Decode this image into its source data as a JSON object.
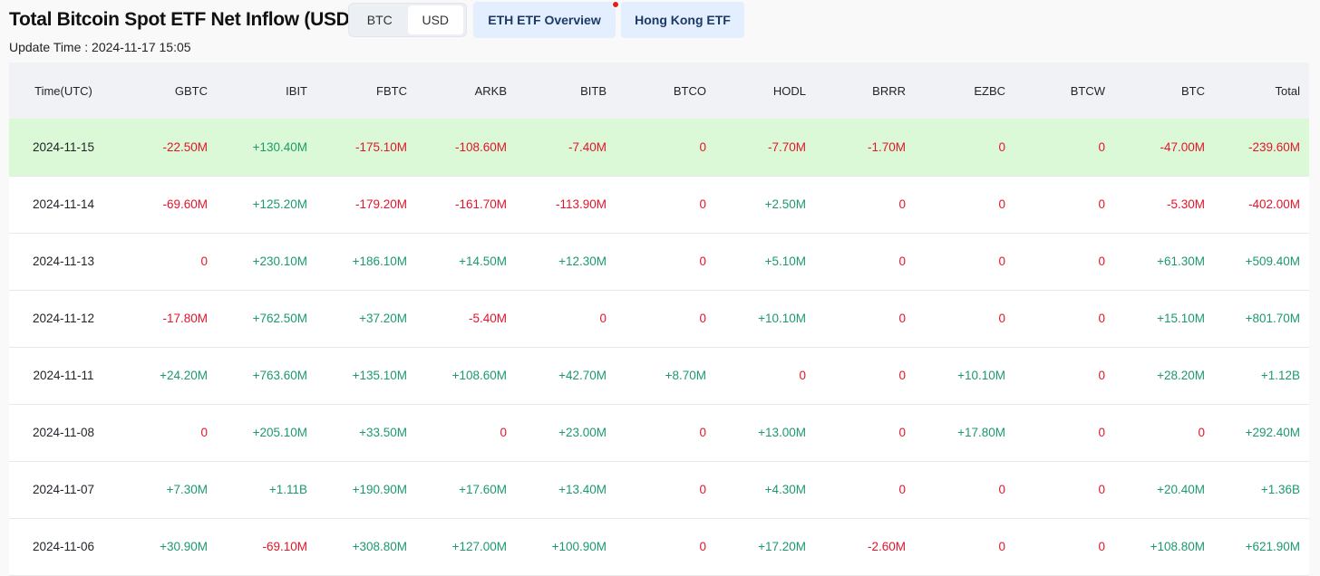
{
  "title": "Total Bitcoin Spot ETF Net Inflow (USD)",
  "update_time": "Update Time : 2024-11-17 15:05",
  "unit_toggle": {
    "options": [
      "BTC",
      "USD"
    ],
    "active": "USD"
  },
  "tabs": [
    {
      "label": "ETH ETF Overview",
      "has_notification": true
    },
    {
      "label": "Hong Kong ETF"
    }
  ],
  "colors": {
    "positive": "#1c9a6c",
    "negative": "#e3152b",
    "highlight_row": "#dcf9d7",
    "tab_bg": "#e3efff"
  },
  "table": {
    "columns": [
      "Time(UTC)",
      "GBTC",
      "IBIT",
      "FBTC",
      "ARKB",
      "BITB",
      "BTCO",
      "HODL",
      "BRRR",
      "EZBC",
      "BTCW",
      "BTC",
      "Total"
    ],
    "highlighted_row": 0,
    "rows": [
      [
        "2024-11-15",
        "-22.50M",
        "+130.40M",
        "-175.10M",
        "-108.60M",
        "-7.40M",
        "0",
        "-7.70M",
        "-1.70M",
        "0",
        "0",
        "-47.00M",
        "-239.60M"
      ],
      [
        "2024-11-14",
        "-69.60M",
        "+125.20M",
        "-179.20M",
        "-161.70M",
        "-113.90M",
        "0",
        "+2.50M",
        "0",
        "0",
        "0",
        "-5.30M",
        "-402.00M"
      ],
      [
        "2024-11-13",
        "0",
        "+230.10M",
        "+186.10M",
        "+14.50M",
        "+12.30M",
        "0",
        "+5.10M",
        "0",
        "0",
        "0",
        "+61.30M",
        "+509.40M"
      ],
      [
        "2024-11-12",
        "-17.80M",
        "+762.50M",
        "+37.20M",
        "-5.40M",
        "0",
        "0",
        "+10.10M",
        "0",
        "0",
        "0",
        "+15.10M",
        "+801.70M"
      ],
      [
        "2024-11-11",
        "+24.20M",
        "+763.60M",
        "+135.10M",
        "+108.60M",
        "+42.70M",
        "+8.70M",
        "0",
        "0",
        "+10.10M",
        "0",
        "+28.20M",
        "+1.12B"
      ],
      [
        "2024-11-08",
        "0",
        "+205.10M",
        "+33.50M",
        "0",
        "+23.00M",
        "0",
        "+13.00M",
        "0",
        "+17.80M",
        "0",
        "0",
        "+292.40M"
      ],
      [
        "2024-11-07",
        "+7.30M",
        "+1.11B",
        "+190.90M",
        "+17.60M",
        "+13.40M",
        "0",
        "+4.30M",
        "0",
        "0",
        "0",
        "+20.40M",
        "+1.36B"
      ],
      [
        "2024-11-06",
        "+30.90M",
        "-69.10M",
        "+308.80M",
        "+127.00M",
        "+100.90M",
        "0",
        "+17.20M",
        "-2.60M",
        "0",
        "0",
        "+108.80M",
        "+621.90M"
      ]
    ]
  }
}
